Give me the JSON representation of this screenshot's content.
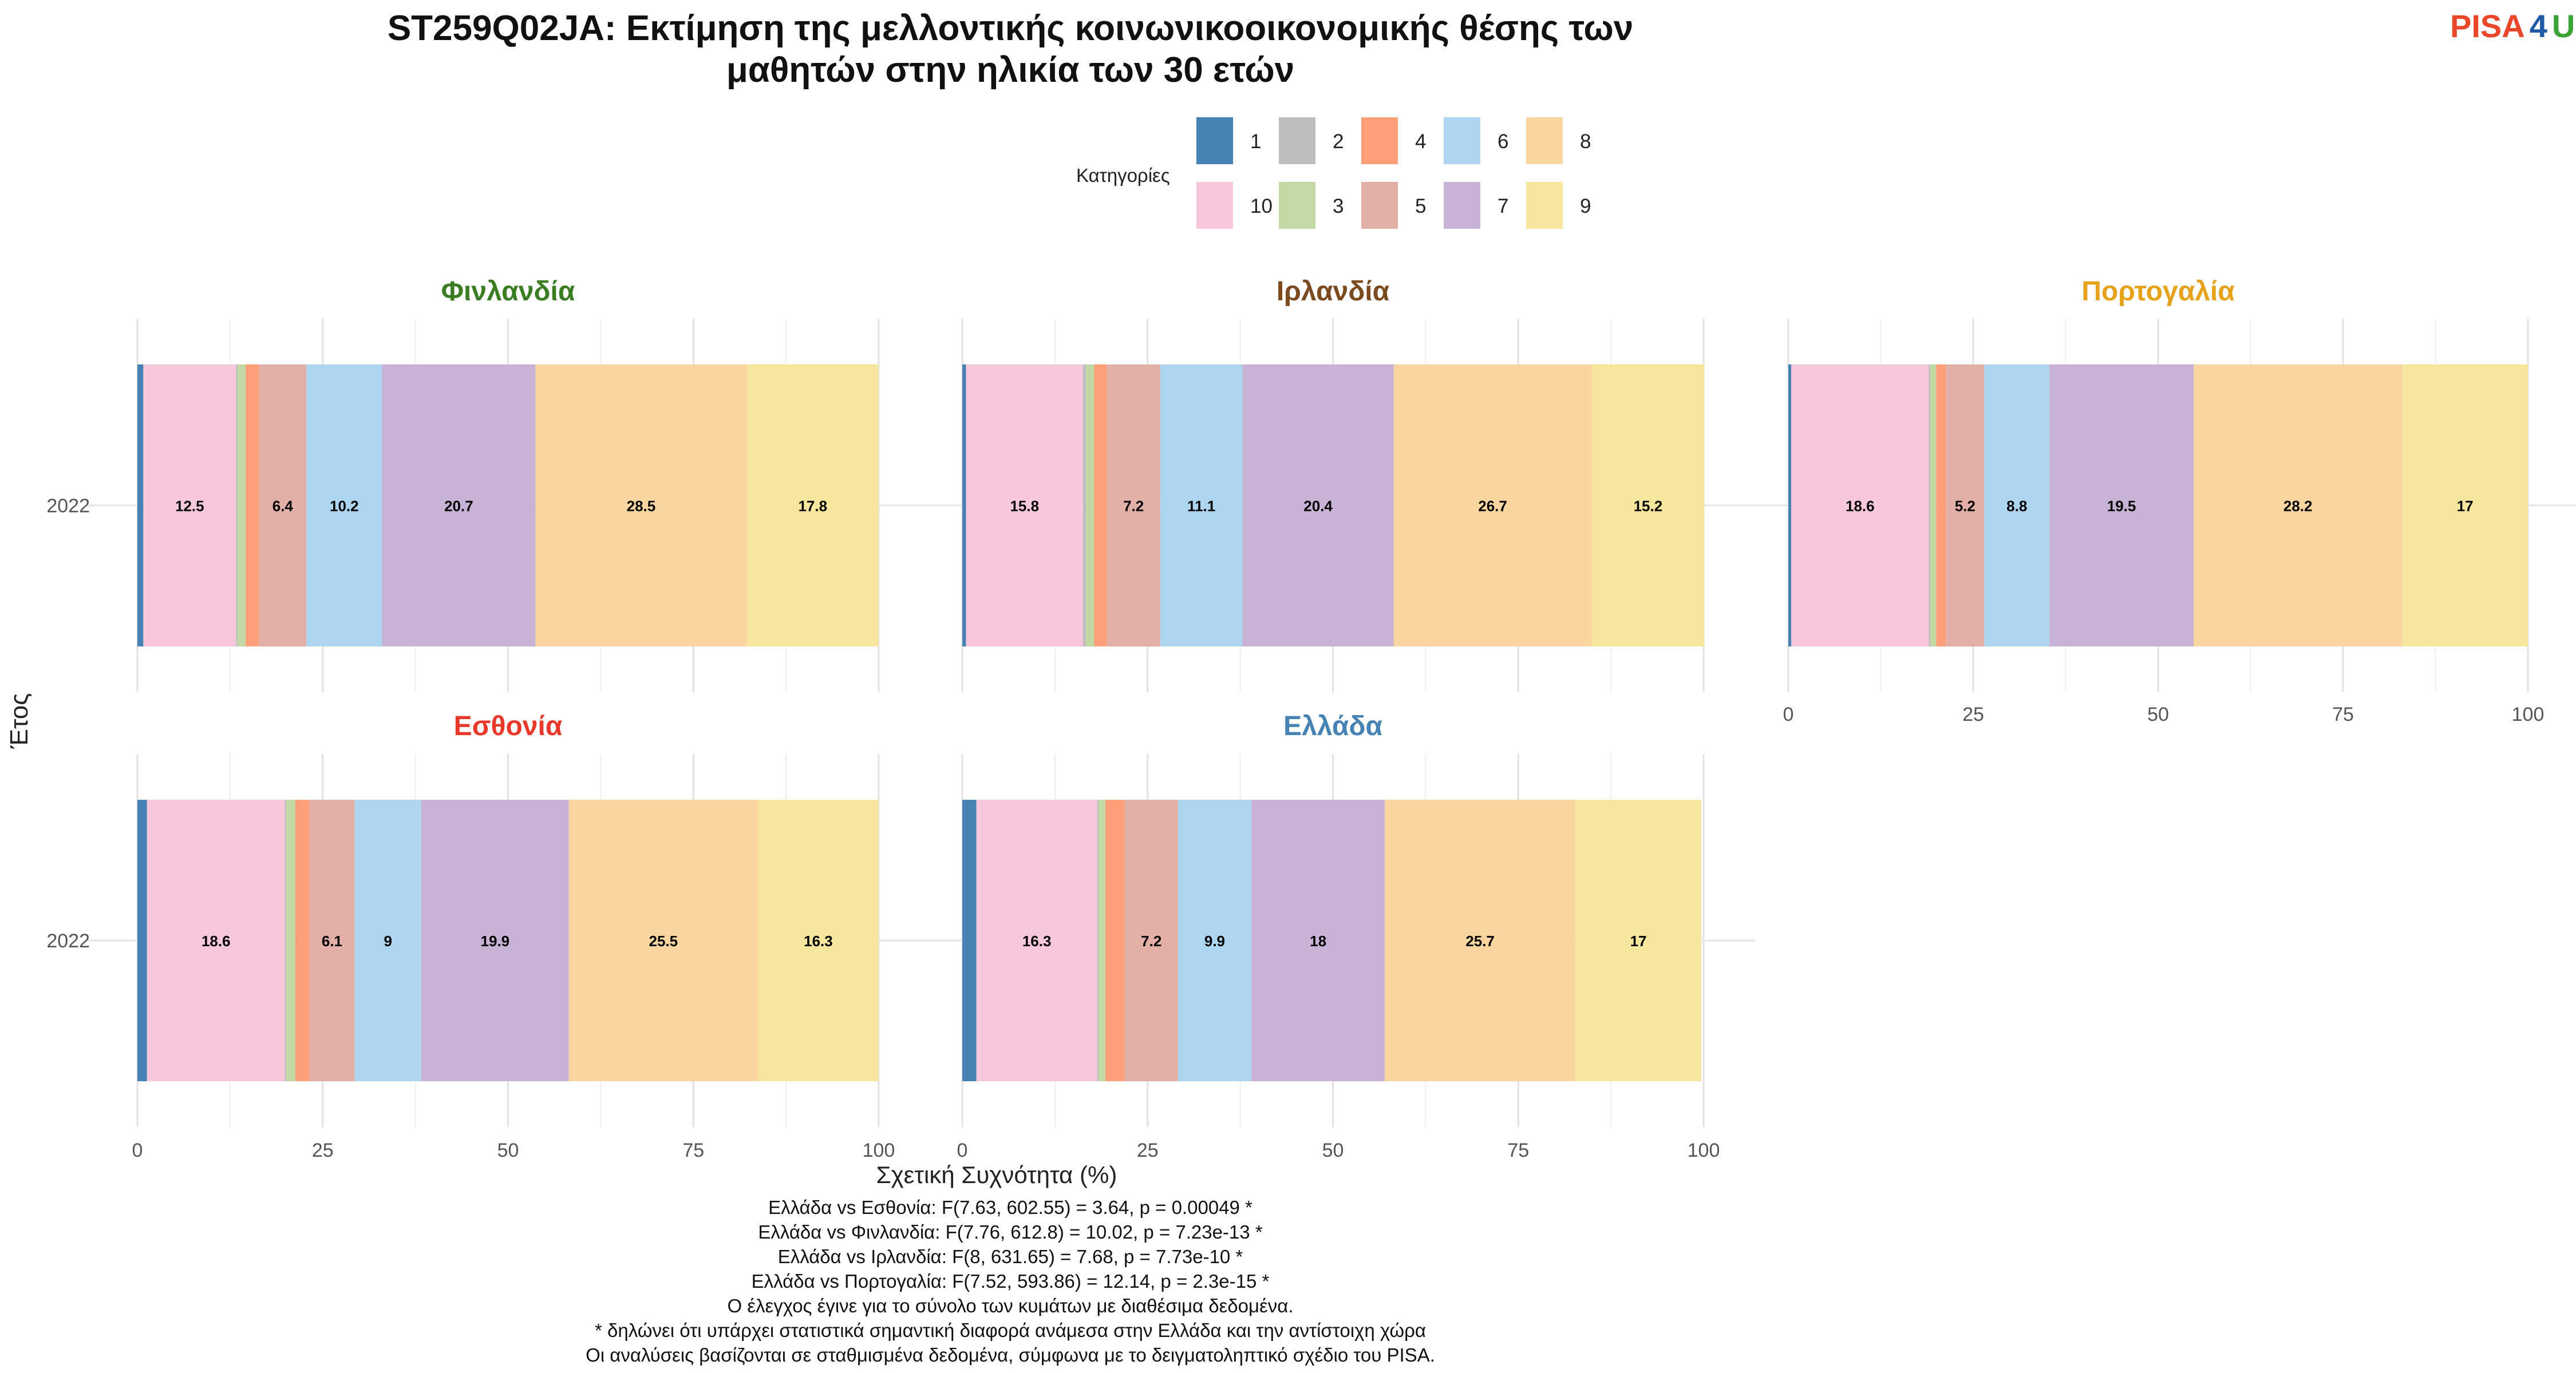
{
  "logo": {
    "part1": "PISA",
    "part2": "4",
    "part3": "U",
    "color1": "#e8472a",
    "color2": "#1e5aa8",
    "color3": "#3aa335"
  },
  "chart_data": {
    "type": "bar",
    "orientation": "horizontal-stacked",
    "title_line1": "ST259Q02JA: Εκτίμηση της μελλοντικής κοινωνικοοικονομικής θέσης των",
    "title_line2": "μαθητών στην ηλικία των 30 ετών",
    "xlabel": "Σχετική Συχνότητα (%)",
    "ylabel": "Έτος",
    "xlim": [
      0,
      100
    ],
    "xticks": [
      0,
      25,
      50,
      75,
      100
    ],
    "grid": true,
    "legend": {
      "title": "Κατηγορίες",
      "placement": "top-center",
      "rows": [
        [
          "1",
          "2",
          "4",
          "6",
          "8"
        ],
        [
          "10",
          "3",
          "5",
          "7",
          "9"
        ]
      ]
    },
    "category_order": [
      "1",
      "10",
      "2",
      "3",
      "4",
      "5",
      "6",
      "7",
      "8",
      "9"
    ],
    "colors": {
      "1": "#4682b4",
      "10": "#f7c8dc",
      "2": "#bebebe",
      "3": "#c2d9a3",
      "4": "#fca07a",
      "5": "#e3b0a8",
      "6": "#aed5f0",
      "7": "#c8b2d6",
      "8": "#f9d6a0",
      "9": "#f7e69d"
    },
    "facets": [
      {
        "country": "Φινλανδία",
        "color": "#3b7d23",
        "year": "2022",
        "values": [
          0.8,
          12.5,
          0.2,
          1.1,
          1.8,
          6.4,
          10.2,
          20.7,
          28.5,
          17.8
        ]
      },
      {
        "country": "Ιρλανδία",
        "color": "#7b4a1e",
        "year": "2022",
        "values": [
          0.5,
          15.8,
          0.4,
          1.1,
          1.7,
          7.2,
          11.1,
          20.4,
          26.7,
          15.2
        ]
      },
      {
        "country": "Πορτογαλία",
        "color": "#e6a21a",
        "year": "2022",
        "values": [
          0.4,
          18.6,
          0.2,
          0.8,
          1.3,
          5.2,
          8.8,
          19.5,
          28.2,
          17.0
        ]
      },
      {
        "country": "Εσθονία",
        "color": "#e8382a",
        "year": "2022",
        "values": [
          1.3,
          18.6,
          0.2,
          1.2,
          1.9,
          6.1,
          9.0,
          19.9,
          25.5,
          16.3
        ]
      },
      {
        "country": "Ελλάδα",
        "color": "#4682b4",
        "year": "2022",
        "values": [
          1.9,
          16.3,
          0.2,
          0.9,
          2.6,
          7.2,
          9.9,
          18.0,
          25.7,
          17.0
        ]
      }
    ],
    "label_threshold": 5
  },
  "footnotes": [
    "Ελλάδα vs Εσθονία: F(7.63, 602.55) = 3.64, p = 0.00049 *",
    "Ελλάδα vs Φινλανδία: F(7.76, 612.8) = 10.02, p = 7.23e-13 *",
    "Ελλάδα vs Ιρλανδία: F(8, 631.65) = 7.68, p = 7.73e-10 *",
    "Ελλάδα vs Πορτογαλία: F(7.52, 593.86) = 12.14, p = 2.3e-15 *",
    "Ο έλεγχος έγινε για το σύνολο των κυμάτων με διαθέσιμα δεδομένα.",
    "* δηλώνει ότι υπάρχει στατιστικά σημαντική διαφορά ανάμεσα στην Ελλάδα και την αντίστοιχη χώρα",
    "Οι αναλύσεις βασίζονται σε σταθμισμένα δεδομένα, σύμφωνα με το δειγματοληπτικό σχέδιο του PISA."
  ]
}
